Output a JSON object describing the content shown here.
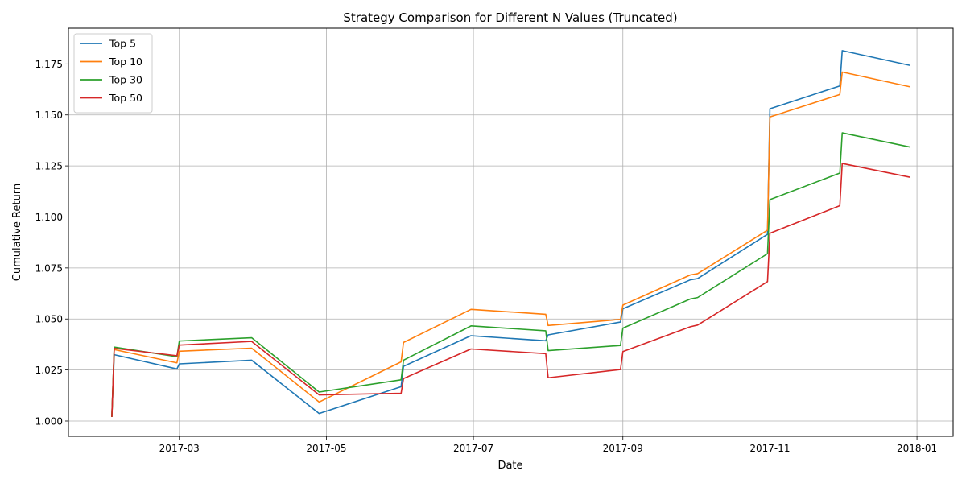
{
  "chart_data": {
    "type": "line",
    "title": "Strategy Comparison for Different N Values (Truncated)",
    "xlabel": "Date",
    "ylabel": "Cumulative Return",
    "xlim": [
      "2017-01-14",
      "2018-01-16"
    ],
    "ylim": [
      0.9925,
      1.1925
    ],
    "x_ticks": [
      "2017-03-01",
      "2017-05-01",
      "2017-07-01",
      "2017-09-01",
      "2017-11-01",
      "2018-01-01"
    ],
    "x_tick_labels": [
      "2017-03",
      "2017-05",
      "2017-07",
      "2017-09",
      "2017-11",
      "2018-01"
    ],
    "y_ticks": [
      1.0,
      1.025,
      1.05,
      1.075,
      1.1,
      1.125,
      1.15,
      1.175
    ],
    "y_tick_labels": [
      "1.000",
      "1.025",
      "1.050",
      "1.075",
      "1.100",
      "1.125",
      "1.150",
      "1.175"
    ],
    "grid": true,
    "legend_position": "top-left",
    "x": [
      "2017-02-01",
      "2017-02-02",
      "2017-02-28",
      "2017-03-01",
      "2017-03-31",
      "2017-04-28",
      "2017-06-01",
      "2017-06-02",
      "2017-06-30",
      "2017-07-31",
      "2017-08-01",
      "2017-08-31",
      "2017-09-01",
      "2017-09-29",
      "2017-10-02",
      "2017-10-31",
      "2017-11-01",
      "2017-11-30",
      "2017-12-01",
      "2017-12-29"
    ],
    "series": [
      {
        "name": "Top 5",
        "color": "#1f77b4",
        "values": [
          1.002,
          1.0325,
          1.0255,
          1.028,
          1.0298,
          1.0037,
          1.0168,
          1.0268,
          1.0418,
          1.0393,
          1.0422,
          1.0485,
          1.055,
          1.0692,
          1.0698,
          1.0915,
          1.153,
          1.1642,
          1.1815,
          1.1743
        ]
      },
      {
        "name": "Top 10",
        "color": "#ff7f0e",
        "values": [
          1.002,
          1.035,
          1.0285,
          1.0342,
          1.0357,
          1.0093,
          1.029,
          1.0385,
          1.0547,
          1.0523,
          1.0468,
          1.0498,
          1.0568,
          1.0716,
          1.0722,
          1.0935,
          1.149,
          1.16,
          1.171,
          1.1638
        ]
      },
      {
        "name": "Top 30",
        "color": "#2ca02c",
        "values": [
          1.002,
          1.0362,
          1.0315,
          1.0392,
          1.0408,
          1.0142,
          1.0202,
          1.0298,
          1.0466,
          1.0442,
          1.0345,
          1.037,
          1.0455,
          1.0598,
          1.0605,
          1.082,
          1.1085,
          1.1215,
          1.1412,
          1.1343
        ]
      },
      {
        "name": "Top 50",
        "color": "#d62728",
        "values": [
          1.002,
          1.0356,
          1.032,
          1.0372,
          1.039,
          1.0128,
          1.0136,
          1.0208,
          1.0353,
          1.033,
          1.0212,
          1.0252,
          1.034,
          1.0462,
          1.047,
          1.0683,
          1.092,
          1.1055,
          1.1262,
          1.1195
        ]
      }
    ]
  }
}
